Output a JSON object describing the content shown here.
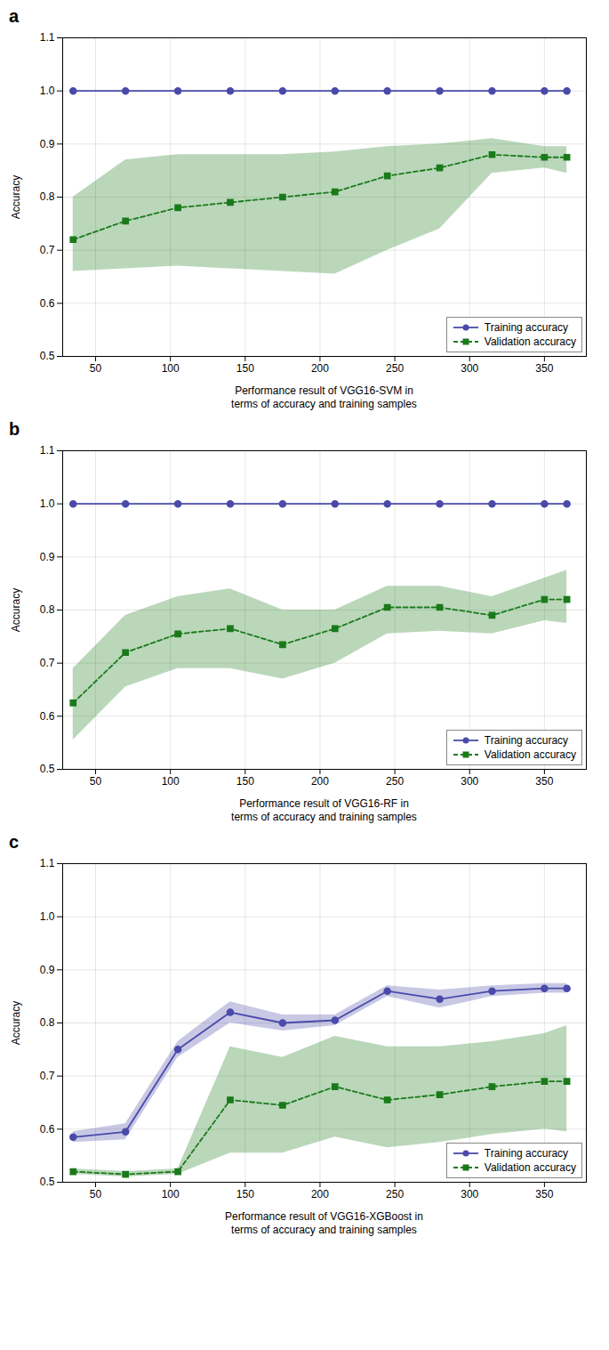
{
  "chart_data": [
    {
      "type": "line",
      "title": "a",
      "xlabel": "Performance result of VGG16-SVM in\nterms of accuracy and training samples",
      "ylabel": "Accuracy",
      "x": [
        35,
        70,
        105,
        140,
        175,
        210,
        245,
        280,
        315,
        350,
        365
      ],
      "series": [
        {
          "name": "Training accuracy",
          "color": "#4a4aaa",
          "marker": "circle",
          "line_style": "solid",
          "values": [
            1.0,
            1.0,
            1.0,
            1.0,
            1.0,
            1.0,
            1.0,
            1.0,
            1.0,
            1.0,
            1.0
          ],
          "upper": [
            1.0,
            1.0,
            1.0,
            1.0,
            1.0,
            1.0,
            1.0,
            1.0,
            1.0,
            1.0,
            1.0
          ],
          "lower": [
            1.0,
            1.0,
            1.0,
            1.0,
            1.0,
            1.0,
            1.0,
            1.0,
            1.0,
            1.0,
            1.0
          ]
        },
        {
          "name": "Validation accuracy",
          "color": "#1a7a1a",
          "marker": "square",
          "line_style": "dashed",
          "values": [
            0.72,
            0.755,
            0.78,
            0.79,
            0.8,
            0.81,
            0.84,
            0.855,
            0.88,
            0.875,
            0.875
          ],
          "upper": [
            0.8,
            0.87,
            0.88,
            0.88,
            0.88,
            0.885,
            0.895,
            0.9,
            0.91,
            0.895,
            0.895
          ],
          "lower": [
            0.66,
            0.665,
            0.67,
            0.665,
            0.66,
            0.655,
            0.7,
            0.74,
            0.845,
            0.855,
            0.845
          ]
        }
      ],
      "xlim": [
        28,
        378
      ],
      "xticks": [
        50,
        100,
        150,
        200,
        250,
        300,
        350
      ],
      "ylim": [
        0.5,
        1.1
      ],
      "yticks": [
        0.5,
        0.6,
        0.7,
        0.8,
        0.9,
        {
          "value": 1.0,
          "label": "1.0"
        },
        1.1
      ],
      "grid": true,
      "legend": "lower right"
    },
    {
      "type": "line",
      "title": "b",
      "xlabel": "Performance result of VGG16-RF in\nterms of accuracy and training samples",
      "ylabel": "Accuracy",
      "x": [
        35,
        70,
        105,
        140,
        175,
        210,
        245,
        280,
        315,
        350,
        365
      ],
      "series": [
        {
          "name": "Training accuracy",
          "color": "#4a4aaa",
          "marker": "circle",
          "line_style": "solid",
          "values": [
            1.0,
            1.0,
            1.0,
            1.0,
            1.0,
            1.0,
            1.0,
            1.0,
            1.0,
            1.0,
            1.0
          ],
          "upper": [
            1.0,
            1.0,
            1.0,
            1.0,
            1.0,
            1.0,
            1.0,
            1.0,
            1.0,
            1.0,
            1.0
          ],
          "lower": [
            1.0,
            1.0,
            1.0,
            1.0,
            1.0,
            1.0,
            1.0,
            1.0,
            1.0,
            1.0,
            1.0
          ]
        },
        {
          "name": "Validation accuracy",
          "color": "#1a7a1a",
          "marker": "square",
          "line_style": "dashed",
          "values": [
            0.625,
            0.72,
            0.755,
            0.765,
            0.735,
            0.765,
            0.805,
            0.805,
            0.79,
            0.82,
            0.82
          ],
          "upper": [
            0.69,
            0.79,
            0.825,
            0.84,
            0.8,
            0.8,
            0.845,
            0.845,
            0.825,
            0.86,
            0.875
          ],
          "lower": [
            0.555,
            0.655,
            0.69,
            0.69,
            0.67,
            0.7,
            0.755,
            0.76,
            0.755,
            0.78,
            0.775
          ]
        }
      ],
      "xlim": [
        28,
        378
      ],
      "xticks": [
        50,
        100,
        150,
        200,
        250,
        300,
        350
      ],
      "ylim": [
        0.5,
        1.1
      ],
      "yticks": [
        0.5,
        0.6,
        0.7,
        0.8,
        0.9,
        {
          "value": 1.0,
          "label": "1.0"
        },
        1.1
      ],
      "grid": true,
      "legend": "lower right"
    },
    {
      "type": "line",
      "title": "c",
      "xlabel": "Performance result of VGG16-XGBoost in\nterms of accuracy and training samples",
      "ylabel": "Accuracy",
      "x": [
        35,
        70,
        105,
        140,
        175,
        210,
        245,
        280,
        315,
        350,
        365
      ],
      "series": [
        {
          "name": "Training accuracy",
          "color": "#4a4aaa",
          "marker": "circle",
          "line_style": "solid",
          "values": [
            0.585,
            0.595,
            0.75,
            0.82,
            0.8,
            0.805,
            0.86,
            0.845,
            0.86,
            0.865,
            0.865
          ],
          "upper": [
            0.595,
            0.61,
            0.765,
            0.84,
            0.815,
            0.815,
            0.87,
            0.862,
            0.87,
            0.874,
            0.874
          ],
          "lower": [
            0.575,
            0.58,
            0.735,
            0.8,
            0.785,
            0.795,
            0.85,
            0.828,
            0.85,
            0.856,
            0.856
          ]
        },
        {
          "name": "Validation accuracy",
          "color": "#1a7a1a",
          "marker": "square",
          "line_style": "dashed",
          "values": [
            0.52,
            0.515,
            0.52,
            0.655,
            0.645,
            0.68,
            0.655,
            0.665,
            0.68,
            0.69,
            0.69
          ],
          "upper": [
            0.525,
            0.52,
            0.525,
            0.755,
            0.735,
            0.775,
            0.755,
            0.755,
            0.765,
            0.78,
            0.795
          ],
          "lower": [
            0.515,
            0.51,
            0.515,
            0.555,
            0.555,
            0.585,
            0.565,
            0.575,
            0.59,
            0.6,
            0.595
          ]
        }
      ],
      "xlim": [
        28,
        378
      ],
      "xticks": [
        50,
        100,
        150,
        200,
        250,
        300,
        350
      ],
      "ylim": [
        0.5,
        1.1
      ],
      "yticks": [
        0.5,
        0.6,
        0.7,
        0.8,
        0.9,
        {
          "value": 1.0,
          "label": "1.0"
        },
        1.1
      ],
      "grid": true,
      "legend": "lower right"
    }
  ]
}
